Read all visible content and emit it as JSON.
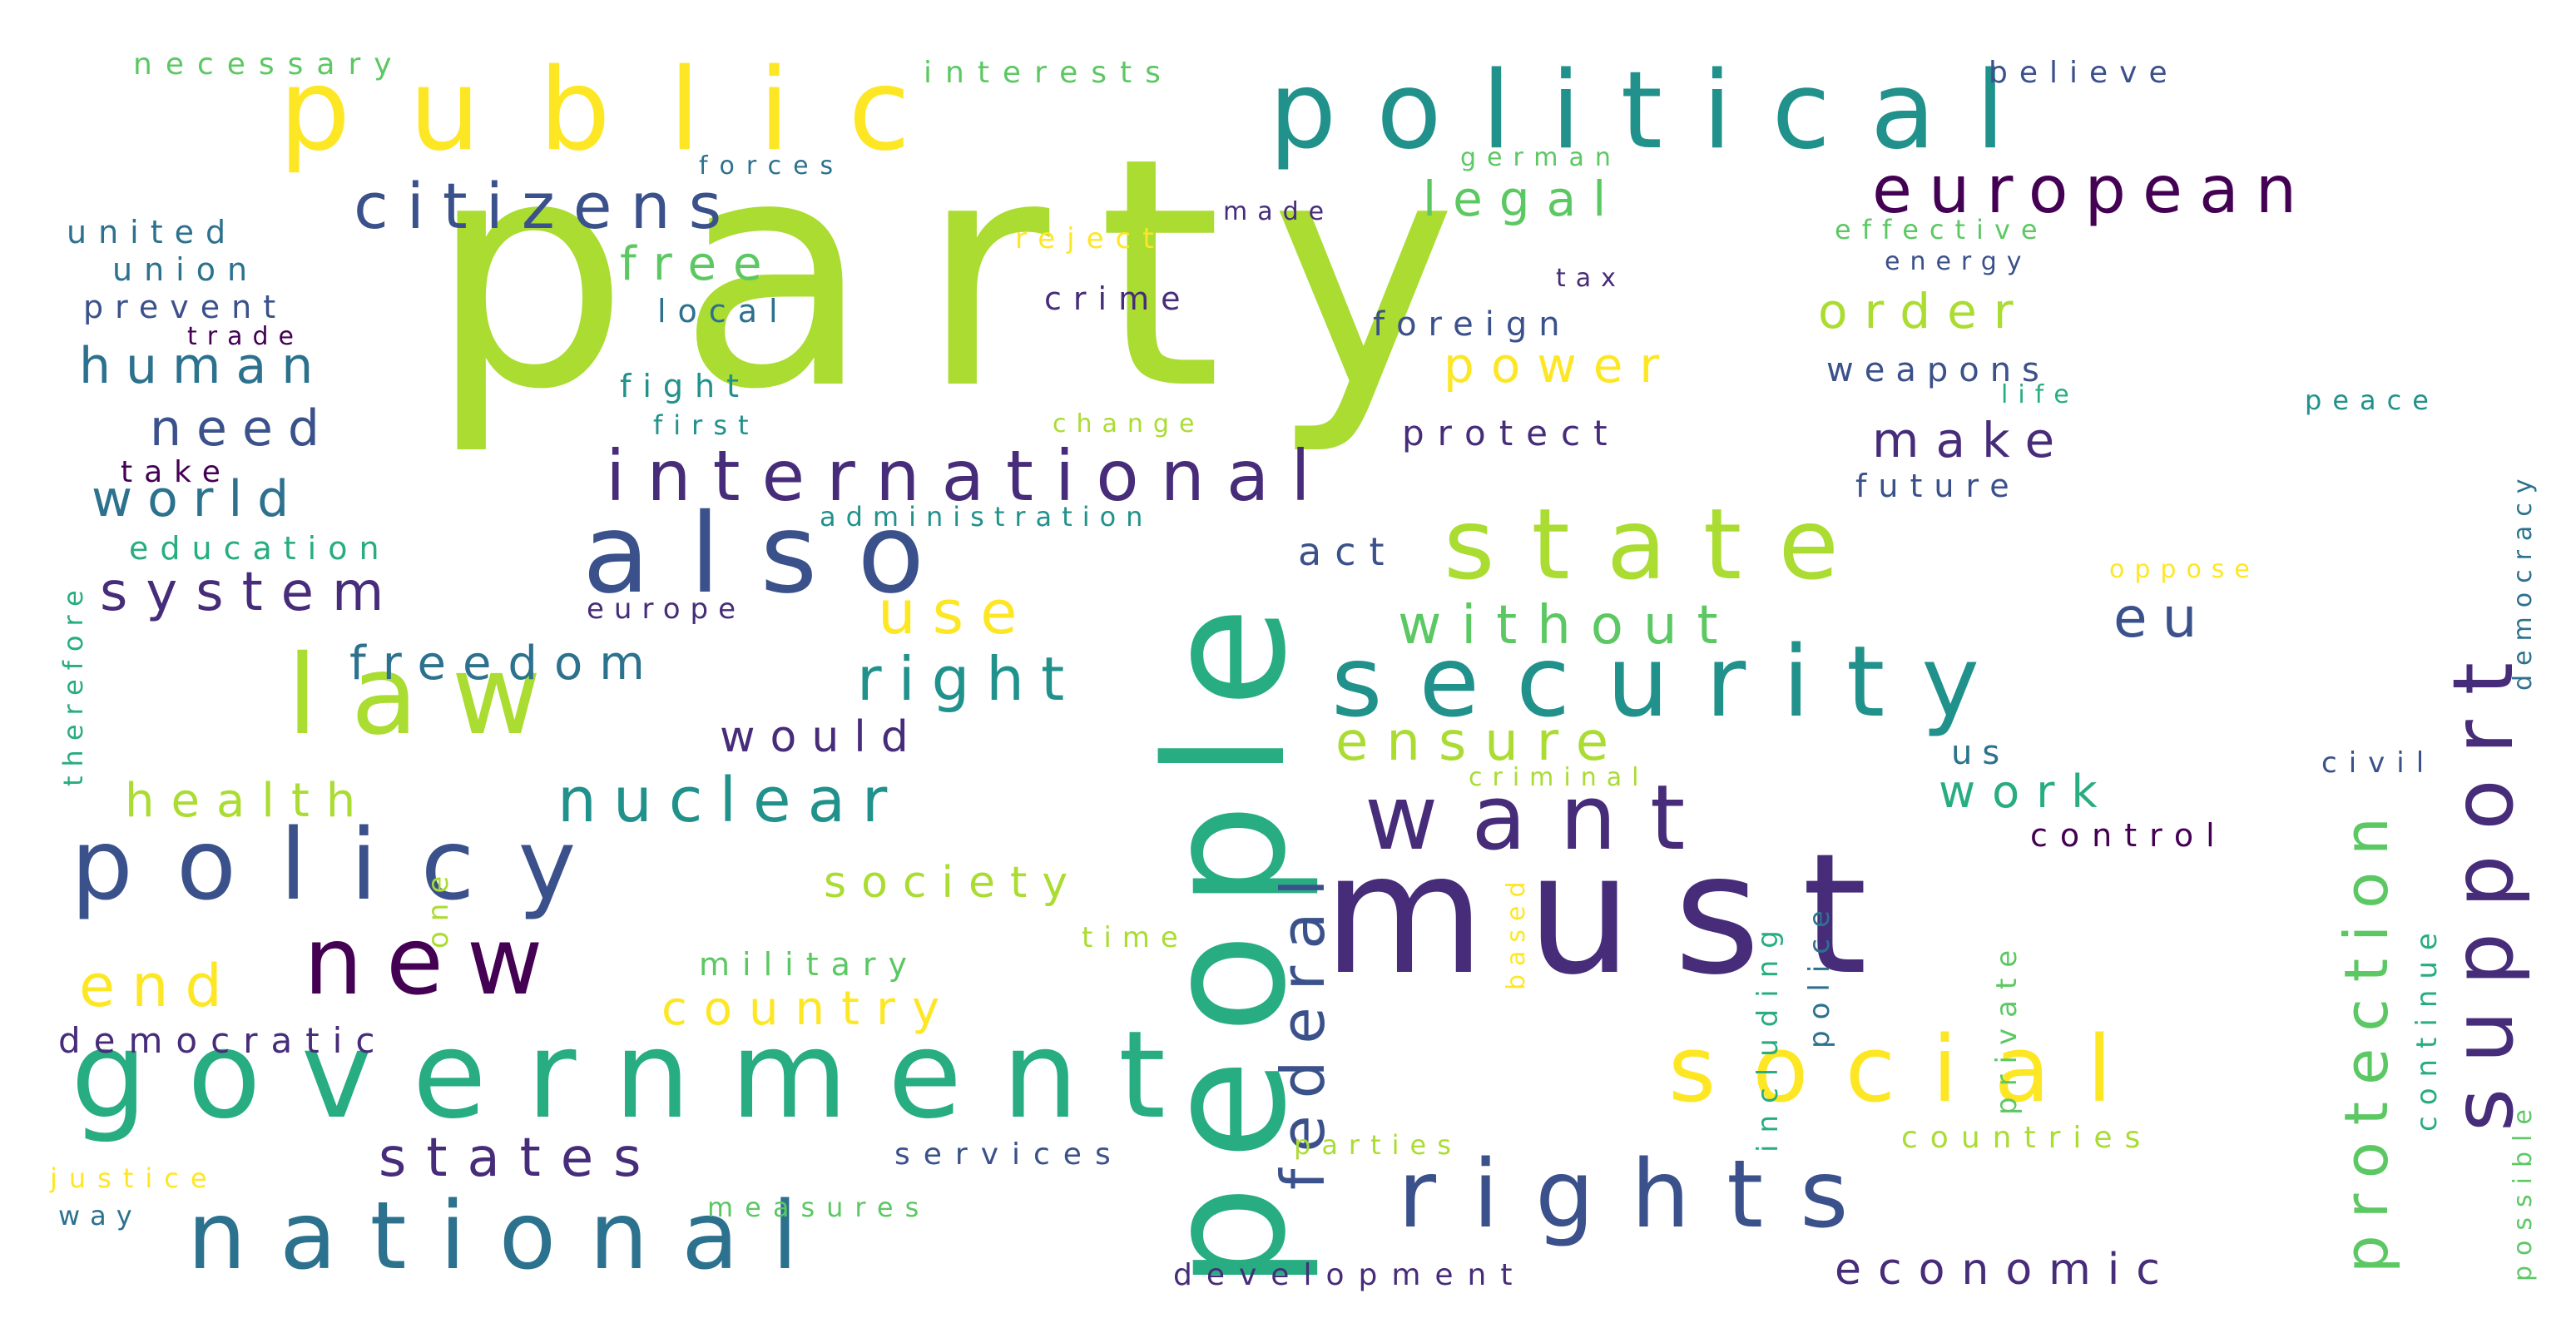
{
  "palette": {
    "background": "#ffffff",
    "viridis": [
      "#440154",
      "#472c7a",
      "#3b518b",
      "#2c718e",
      "#21918c",
      "#27ad81",
      "#5cc863",
      "#aadc32",
      "#fde725"
    ]
  },
  "words": [
    {
      "text": "party",
      "color": "#aadc32"
    },
    {
      "text": "people",
      "color": "#27ad81"
    },
    {
      "text": "must",
      "color": "#472c7a"
    },
    {
      "text": "political",
      "color": "#21918c"
    },
    {
      "text": "public",
      "color": "#fde725"
    },
    {
      "text": "government",
      "color": "#27ad81"
    },
    {
      "text": "security",
      "color": "#21918c"
    },
    {
      "text": "state",
      "color": "#aadc32"
    },
    {
      "text": "law",
      "color": "#aadc32"
    },
    {
      "text": "also",
      "color": "#3b518b"
    },
    {
      "text": "national",
      "color": "#2c718e"
    },
    {
      "text": "rights",
      "color": "#3b518b"
    },
    {
      "text": "policy",
      "color": "#3b518b"
    },
    {
      "text": "social",
      "color": "#fde725"
    },
    {
      "text": "support",
      "color": "#472c7a"
    },
    {
      "text": "want",
      "color": "#472c7a"
    },
    {
      "text": "international",
      "color": "#472c7a"
    },
    {
      "text": "new",
      "color": "#440154"
    },
    {
      "text": "european",
      "color": "#440154"
    },
    {
      "text": "citizens",
      "color": "#3b518b"
    },
    {
      "text": "protection",
      "color": "#5cc863"
    },
    {
      "text": "federal",
      "color": "#3b518b"
    },
    {
      "text": "right",
      "color": "#21918c"
    },
    {
      "text": "nuclear",
      "color": "#21918c"
    },
    {
      "text": "system",
      "color": "#472c7a"
    },
    {
      "text": "states",
      "color": "#472c7a"
    },
    {
      "text": "without",
      "color": "#5cc863"
    },
    {
      "text": "ensure",
      "color": "#aadc32"
    },
    {
      "text": "economic",
      "color": "#472c7a"
    },
    {
      "text": "country",
      "color": "#fde725"
    },
    {
      "text": "freedom",
      "color": "#2c718e"
    },
    {
      "text": "health",
      "color": "#aadc32"
    },
    {
      "text": "human",
      "color": "#2c718e"
    },
    {
      "text": "society",
      "color": "#aadc32"
    },
    {
      "text": "legal",
      "color": "#5cc863"
    },
    {
      "text": "order",
      "color": "#aadc32"
    },
    {
      "text": "power",
      "color": "#fde725"
    },
    {
      "text": "make",
      "color": "#472c7a"
    },
    {
      "text": "work",
      "color": "#27ad81"
    },
    {
      "text": "end",
      "color": "#fde725"
    },
    {
      "text": "use",
      "color": "#fde725"
    },
    {
      "text": "world",
      "color": "#2c718e"
    },
    {
      "text": "need",
      "color": "#3b518b"
    },
    {
      "text": "free",
      "color": "#5cc863"
    },
    {
      "text": "would",
      "color": "#472c7a"
    },
    {
      "text": "eu",
      "color": "#3b518b"
    },
    {
      "text": "democratic",
      "color": "#472c7a"
    },
    {
      "text": "development",
      "color": "#472c7a"
    },
    {
      "text": "military",
      "color": "#5cc863"
    },
    {
      "text": "services",
      "color": "#3b518b"
    },
    {
      "text": "control",
      "color": "#440154"
    },
    {
      "text": "countries",
      "color": "#aadc32"
    },
    {
      "text": "protect",
      "color": "#472c7a"
    },
    {
      "text": "foreign",
      "color": "#3b518b"
    },
    {
      "text": "future",
      "color": "#3b518b"
    },
    {
      "text": "weapons",
      "color": "#3b518b"
    },
    {
      "text": "act",
      "color": "#3b518b"
    },
    {
      "text": "crime",
      "color": "#472c7a"
    },
    {
      "text": "local",
      "color": "#2c718e"
    },
    {
      "text": "fight",
      "color": "#21918c"
    },
    {
      "text": "united",
      "color": "#2c718e"
    },
    {
      "text": "union",
      "color": "#2c718e"
    },
    {
      "text": "prevent",
      "color": "#3b518b"
    },
    {
      "text": "education",
      "color": "#27ad81"
    },
    {
      "text": "take",
      "color": "#440154"
    },
    {
      "text": "europe",
      "color": "#472c7a"
    },
    {
      "text": "necessary",
      "color": "#5cc863"
    },
    {
      "text": "interests",
      "color": "#5cc863"
    },
    {
      "text": "believe",
      "color": "#3b518b"
    },
    {
      "text": "forces",
      "color": "#2c718e"
    },
    {
      "text": "german",
      "color": "#5cc863"
    },
    {
      "text": "made",
      "color": "#472c7a"
    },
    {
      "text": "reject",
      "color": "#fde725"
    },
    {
      "text": "effective",
      "color": "#5cc863"
    },
    {
      "text": "energy",
      "color": "#3b518b"
    },
    {
      "text": "tax",
      "color": "#472c7a"
    },
    {
      "text": "trade",
      "color": "#440154"
    },
    {
      "text": "first",
      "color": "#21918c"
    },
    {
      "text": "change",
      "color": "#aadc32"
    },
    {
      "text": "life",
      "color": "#27ad81"
    },
    {
      "text": "peace",
      "color": "#21918c"
    },
    {
      "text": "administration",
      "color": "#21918c"
    },
    {
      "text": "oppose",
      "color": "#fde725"
    },
    {
      "text": "criminal",
      "color": "#aadc32"
    },
    {
      "text": "us",
      "color": "#2c718e"
    },
    {
      "text": "civil",
      "color": "#3b518b"
    },
    {
      "text": "time",
      "color": "#aadc32"
    },
    {
      "text": "parties",
      "color": "#aadc32"
    },
    {
      "text": "justice",
      "color": "#fde725"
    },
    {
      "text": "measures",
      "color": "#5cc863"
    },
    {
      "text": "way",
      "color": "#2c718e"
    },
    {
      "text": "therefore",
      "color": "#27ad81"
    },
    {
      "text": "one",
      "color": "#aadc32"
    },
    {
      "text": "based",
      "color": "#fde725"
    },
    {
      "text": "including",
      "color": "#27ad81"
    },
    {
      "text": "police",
      "color": "#2c718e"
    },
    {
      "text": "private",
      "color": "#5cc863"
    },
    {
      "text": "continue",
      "color": "#27ad81"
    },
    {
      "text": "democracy",
      "color": "#2c718e"
    },
    {
      "text": "possible",
      "color": "#5cc863"
    }
  ]
}
